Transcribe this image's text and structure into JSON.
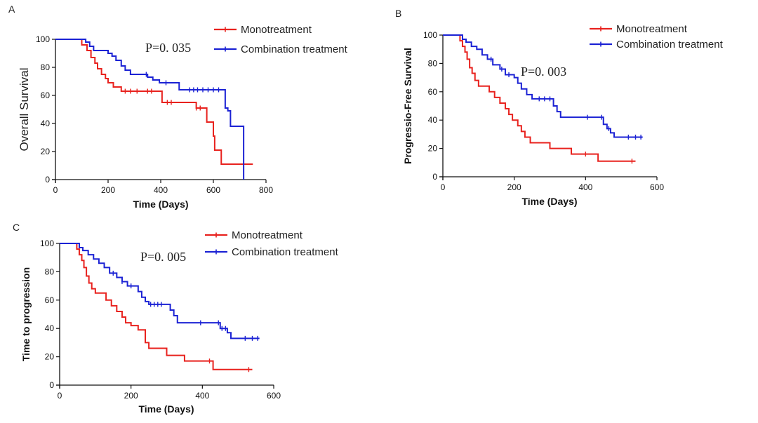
{
  "colors": {
    "mono": "#e8221e",
    "combo": "#1b22d4",
    "axis": "#111111"
  },
  "chart_data": [
    {
      "type": "line",
      "panel": "A",
      "xlabel": "Time (Days)",
      "ylabel": "Overall Survival",
      "xlim": [
        0,
        800
      ],
      "ylim": [
        0,
        100
      ],
      "xticks": [
        0,
        200,
        400,
        600,
        800
      ],
      "yticks": [
        0,
        20,
        40,
        60,
        80,
        100
      ],
      "annotation": "P=0. 035",
      "legend_position": "top-right",
      "series": [
        {
          "name": "Monotreatment",
          "color_key": "mono",
          "steps": [
            [
              0,
              100
            ],
            [
              85,
              100
            ],
            [
              100,
              96
            ],
            [
              120,
              92
            ],
            [
              135,
              87
            ],
            [
              150,
              83
            ],
            [
              160,
              79
            ],
            [
              175,
              75
            ],
            [
              190,
              72
            ],
            [
              200,
              69
            ],
            [
              220,
              66
            ],
            [
              250,
              63
            ],
            [
              400,
              63
            ],
            [
              405,
              55
            ],
            [
              530,
              55
            ],
            [
              535,
              51
            ],
            [
              570,
              51
            ],
            [
              575,
              41
            ],
            [
              595,
              41
            ],
            [
              600,
              31
            ],
            [
              605,
              21
            ],
            [
              625,
              21
            ],
            [
              630,
              11
            ],
            [
              750,
              11
            ]
          ],
          "censor_x": [
            265,
            285,
            310,
            350,
            365,
            425,
            440,
            535,
            550
          ]
        },
        {
          "name": "Combination treatment",
          "color_key": "combo",
          "steps": [
            [
              0,
              100
            ],
            [
              105,
              100
            ],
            [
              115,
              98
            ],
            [
              130,
              95
            ],
            [
              145,
              92
            ],
            [
              190,
              92
            ],
            [
              200,
              90
            ],
            [
              215,
              88
            ],
            [
              230,
              85
            ],
            [
              250,
              81
            ],
            [
              265,
              78
            ],
            [
              285,
              75
            ],
            [
              320,
              75
            ],
            [
              350,
              73
            ],
            [
              370,
              71
            ],
            [
              395,
              69
            ],
            [
              460,
              69
            ],
            [
              470,
              64
            ],
            [
              635,
              64
            ],
            [
              645,
              51
            ],
            [
              655,
              49
            ],
            [
              665,
              38
            ],
            [
              705,
              38
            ],
            [
              715,
              0
            ]
          ],
          "censor_x": [
            345,
            420,
            510,
            525,
            540,
            560,
            580,
            600,
            620
          ]
        }
      ]
    },
    {
      "type": "line",
      "panel": "B",
      "xlabel": "Time (Days)",
      "ylabel": "Progressio-Free Survival",
      "xlim": [
        0,
        600
      ],
      "ylim": [
        0,
        100
      ],
      "xticks": [
        0,
        200,
        400,
        600
      ],
      "yticks": [
        0,
        20,
        40,
        60,
        80,
        100
      ],
      "annotation": "P=0. 003",
      "legend_position": "top-right",
      "series": [
        {
          "name": "Monotreatment",
          "color_key": "mono",
          "steps": [
            [
              0,
              100
            ],
            [
              40,
              100
            ],
            [
              48,
              96
            ],
            [
              55,
              92
            ],
            [
              62,
              88
            ],
            [
              68,
              83
            ],
            [
              75,
              77
            ],
            [
              82,
              73
            ],
            [
              90,
              68
            ],
            [
              100,
              64
            ],
            [
              125,
              64
            ],
            [
              130,
              60
            ],
            [
              145,
              56
            ],
            [
              160,
              52
            ],
            [
              175,
              48
            ],
            [
              185,
              44
            ],
            [
              195,
              40
            ],
            [
              210,
              36
            ],
            [
              220,
              32
            ],
            [
              230,
              28
            ],
            [
              245,
              24
            ],
            [
              285,
              24
            ],
            [
              300,
              20
            ],
            [
              345,
              20
            ],
            [
              360,
              16
            ],
            [
              430,
              16
            ],
            [
              435,
              11
            ],
            [
              540,
              11
            ]
          ],
          "censor_x": [
            400,
            530
          ]
        },
        {
          "name": "Combination treatment",
          "color_key": "combo",
          "steps": [
            [
              0,
              100
            ],
            [
              45,
              100
            ],
            [
              55,
              97
            ],
            [
              65,
              95
            ],
            [
              80,
              92
            ],
            [
              95,
              90
            ],
            [
              110,
              86
            ],
            [
              125,
              83
            ],
            [
              140,
              79
            ],
            [
              160,
              76
            ],
            [
              175,
              72
            ],
            [
              200,
              70
            ],
            [
              210,
              66
            ],
            [
              220,
              62
            ],
            [
              235,
              58
            ],
            [
              250,
              55
            ],
            [
              300,
              55
            ],
            [
              310,
              50
            ],
            [
              320,
              46
            ],
            [
              330,
              42
            ],
            [
              440,
              42
            ],
            [
              450,
              37
            ],
            [
              460,
              34
            ],
            [
              470,
              31
            ],
            [
              480,
              28
            ],
            [
              560,
              28
            ]
          ],
          "censor_x": [
            135,
            165,
            185,
            270,
            285,
            300,
            405,
            445,
            465,
            520,
            540,
            555
          ]
        }
      ]
    },
    {
      "type": "line",
      "panel": "C",
      "xlabel": "Time (Days)",
      "ylabel": "Time to progression",
      "xlim": [
        0,
        600
      ],
      "ylim": [
        0,
        100
      ],
      "xticks": [
        0,
        200,
        400,
        600
      ],
      "yticks": [
        0,
        20,
        40,
        60,
        80,
        100
      ],
      "annotation": "P=0. 005",
      "legend_position": "top-right",
      "series": [
        {
          "name": "Monotreatment",
          "color_key": "mono",
          "steps": [
            [
              0,
              100
            ],
            [
              40,
              100
            ],
            [
              48,
              96
            ],
            [
              55,
              92
            ],
            [
              62,
              88
            ],
            [
              68,
              83
            ],
            [
              75,
              77
            ],
            [
              82,
              72
            ],
            [
              90,
              68
            ],
            [
              100,
              65
            ],
            [
              125,
              65
            ],
            [
              130,
              60
            ],
            [
              145,
              56
            ],
            [
              160,
              52
            ],
            [
              175,
              48
            ],
            [
              185,
              44
            ],
            [
              200,
              42
            ],
            [
              215,
              42
            ],
            [
              220,
              39
            ],
            [
              235,
              39
            ],
            [
              240,
              30
            ],
            [
              250,
              26
            ],
            [
              285,
              26
            ],
            [
              300,
              21
            ],
            [
              345,
              21
            ],
            [
              350,
              17
            ],
            [
              425,
              17
            ],
            [
              430,
              11
            ],
            [
              540,
              11
            ]
          ],
          "censor_x": [
            420,
            530
          ]
        },
        {
          "name": "Combination treatment",
          "color_key": "combo",
          "steps": [
            [
              0,
              100
            ],
            [
              45,
              100
            ],
            [
              55,
              97
            ],
            [
              65,
              95
            ],
            [
              80,
              92
            ],
            [
              95,
              89
            ],
            [
              110,
              86
            ],
            [
              125,
              83
            ],
            [
              140,
              79
            ],
            [
              160,
              76
            ],
            [
              175,
              73
            ],
            [
              190,
              70
            ],
            [
              215,
              70
            ],
            [
              220,
              66
            ],
            [
              230,
              62
            ],
            [
              240,
              59
            ],
            [
              250,
              57
            ],
            [
              300,
              57
            ],
            [
              310,
              53
            ],
            [
              320,
              49
            ],
            [
              330,
              44
            ],
            [
              440,
              44
            ],
            [
              450,
              40
            ],
            [
              470,
              37
            ],
            [
              480,
              33
            ],
            [
              560,
              33
            ]
          ],
          "censor_x": [
            150,
            175,
            200,
            255,
            265,
            275,
            285,
            395,
            445,
            455,
            465,
            520,
            540,
            555
          ]
        }
      ]
    }
  ]
}
